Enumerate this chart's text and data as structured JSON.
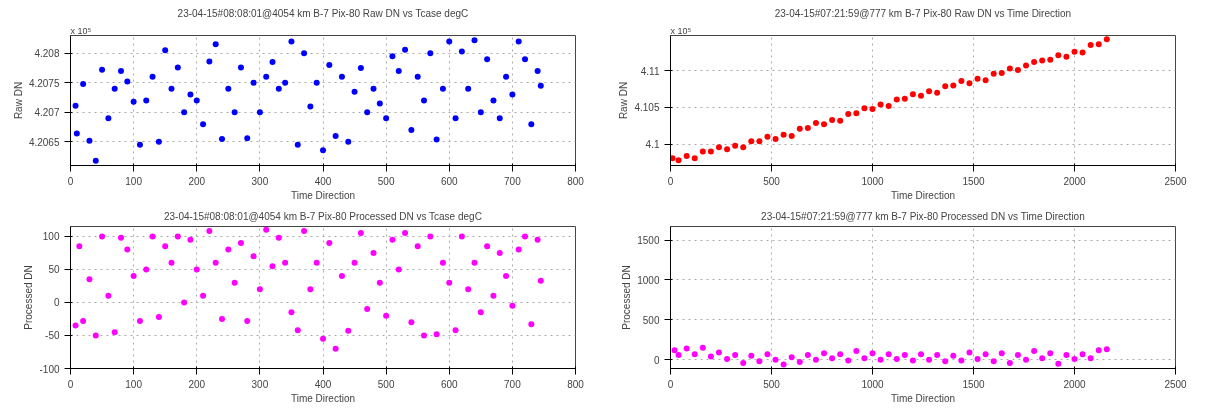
{
  "chart_data": [
    {
      "type": "scatter",
      "title": "23-04-15#08:08:01@4054 km B-7 Pix-80 Raw DN vs Tcase degC",
      "xlabel": "Time Direction",
      "ylabel": "Raw DN",
      "annotations": [
        "x 10⁵"
      ],
      "marker": "circle",
      "grid": true,
      "xlim": [
        0,
        800
      ],
      "xticks": [
        0,
        100,
        200,
        300,
        400,
        500,
        600,
        700,
        800
      ],
      "ylim": [
        4.2061,
        4.2083
      ],
      "yticks": [
        4.2065,
        4.207,
        4.2075,
        4.208
      ],
      "x": [
        8,
        10,
        20,
        30,
        40,
        50,
        60,
        70,
        80,
        90,
        100,
        110,
        120,
        130,
        140,
        150,
        160,
        170,
        180,
        190,
        200,
        210,
        220,
        230,
        240,
        250,
        260,
        270,
        280,
        290,
        300,
        310,
        320,
        330,
        340,
        350,
        360,
        370,
        380,
        390,
        400,
        410,
        420,
        430,
        440,
        450,
        460,
        470,
        480,
        490,
        500,
        510,
        520,
        530,
        540,
        550,
        560,
        570,
        580,
        590,
        600,
        610,
        620,
        630,
        640,
        650,
        660,
        670,
        680,
        690,
        700,
        710,
        720,
        730,
        740,
        745
      ],
      "series": [
        {
          "color": "#0000ff",
          "values": [
            4.20711,
            4.20664,
            4.20748,
            4.20652,
            4.20618,
            4.20772,
            4.2069,
            4.2074,
            4.2077,
            4.20752,
            4.20718,
            4.20645,
            4.2072,
            4.2076,
            4.2065,
            4.20805,
            4.2074,
            4.20776,
            4.207,
            4.2073,
            4.2072,
            4.2068,
            4.20786,
            4.20815,
            4.20655,
            4.2074,
            4.207,
            4.20776,
            4.20656,
            4.2075,
            4.207,
            4.2076,
            4.20785,
            4.2074,
            4.2075,
            4.2082,
            4.20645,
            4.208,
            4.2071,
            4.2075,
            4.20636,
            4.2078,
            4.2066,
            4.2076,
            4.2065,
            4.20735,
            4.20775,
            4.207,
            4.2074,
            4.20715,
            4.2069,
            4.20795,
            4.2077,
            4.20806,
            4.2067,
            4.2076,
            4.2072,
            4.208,
            4.20654,
            4.2074,
            4.2082,
            4.2069,
            4.20803,
            4.2074,
            4.20822,
            4.207,
            4.2079,
            4.2072,
            4.2069,
            4.2076,
            4.2073,
            4.2082,
            4.2079,
            4.2068,
            4.2077,
            4.20745
          ]
        }
      ]
    },
    {
      "type": "scatter",
      "title": "23-04-15#07:21:59@777 km B-7 Pix-80 Raw DN vs Time Direction",
      "xlabel": "Time Direction",
      "ylabel": "Raw DN",
      "annotations": [
        "x 10⁵"
      ],
      "marker": "circle",
      "grid": true,
      "xlim": [
        0,
        2500
      ],
      "xticks": [
        0,
        500,
        1000,
        1500,
        2000,
        2500
      ],
      "ylim": [
        4.0971,
        4.1148
      ],
      "yticks": [
        4.1,
        4.105,
        4.11
      ],
      "x": [
        10,
        40,
        80,
        120,
        160,
        200,
        240,
        280,
        320,
        360,
        400,
        440,
        480,
        520,
        560,
        600,
        640,
        680,
        720,
        760,
        800,
        840,
        880,
        920,
        960,
        1000,
        1040,
        1080,
        1120,
        1160,
        1200,
        1240,
        1280,
        1320,
        1360,
        1400,
        1440,
        1480,
        1520,
        1560,
        1600,
        1640,
        1680,
        1720,
        1760,
        1800,
        1840,
        1880,
        1920,
        1960,
        2000,
        2040,
        2080,
        2120,
        2160
      ],
      "series": [
        {
          "color": "#ff0000",
          "values": [
            4.0981,
            4.0978,
            4.0984,
            4.0981,
            4.099,
            4.099,
            4.0996,
            4.0993,
            4.0998,
            4.0996,
            4.1004,
            4.1004,
            4.101,
            4.1007,
            4.1013,
            4.1011,
            4.1021,
            4.1022,
            4.1029,
            4.1027,
            4.1033,
            4.1032,
            4.1041,
            4.1042,
            4.1049,
            4.1048,
            4.1054,
            4.1052,
            4.1061,
            4.1062,
            4.1068,
            4.1066,
            4.1072,
            4.107,
            4.1079,
            4.108,
            4.1086,
            4.1083,
            4.1089,
            4.1087,
            4.1096,
            4.1097,
            4.1103,
            4.1101,
            4.1107,
            4.1112,
            4.1114,
            4.1115,
            4.1121,
            4.1119,
            4.1126,
            4.1125,
            4.1135,
            4.1136,
            4.1143
          ]
        }
      ]
    },
    {
      "type": "scatter",
      "title": "23-04-15#08:08:01@4054 km B-7 Pix-80 Processed DN vs Tcase degC",
      "xlabel": "Time Direction",
      "ylabel": "Processed DN",
      "marker": "circle",
      "grid": true,
      "xlim": [
        0,
        800
      ],
      "xticks": [
        0,
        100,
        200,
        300,
        400,
        500,
        600,
        700,
        800
      ],
      "ylim": [
        -100,
        115
      ],
      "yticks": [
        -100,
        -50,
        0,
        50,
        100
      ],
      "x": [
        8,
        14,
        20,
        30,
        40,
        50,
        60,
        70,
        80,
        90,
        100,
        110,
        120,
        130,
        140,
        150,
        160,
        170,
        180,
        190,
        200,
        210,
        220,
        230,
        240,
        250,
        260,
        270,
        280,
        290,
        300,
        310,
        320,
        330,
        340,
        350,
        360,
        370,
        380,
        390,
        400,
        410,
        420,
        430,
        440,
        450,
        460,
        470,
        480,
        490,
        500,
        510,
        520,
        530,
        540,
        550,
        560,
        570,
        580,
        590,
        600,
        610,
        620,
        630,
        640,
        650,
        660,
        670,
        680,
        690,
        700,
        710,
        720,
        730,
        740,
        745
      ],
      "series": [
        {
          "color": "#ff00ff",
          "values": [
            -35,
            85,
            -28,
            35,
            -50,
            100,
            10,
            -45,
            98,
            80,
            40,
            -28,
            50,
            100,
            -22,
            85,
            60,
            100,
            0,
            95,
            50,
            10,
            108,
            60,
            -25,
            80,
            30,
            90,
            -28,
            70,
            20,
            110,
            55,
            98,
            60,
            -15,
            -42,
            108,
            20,
            60,
            -55,
            90,
            -70,
            40,
            -43,
            60,
            105,
            -10,
            75,
            30,
            -20,
            95,
            50,
            105,
            -30,
            85,
            -50,
            100,
            -48,
            60,
            30,
            -42,
            100,
            20,
            60,
            -15,
            85,
            10,
            75,
            40,
            -5,
            80,
            100,
            -33,
            95,
            33
          ]
        }
      ]
    },
    {
      "type": "scatter",
      "title": "23-04-15#07:21:59@777 km B-7 Pix-80 Processed DN vs Time Direction",
      "xlabel": "Time Direction",
      "ylabel": "Processed DN",
      "marker": "circle",
      "grid": true,
      "xlim": [
        0,
        2500
      ],
      "xticks": [
        0,
        500,
        1000,
        1500,
        2000,
        2500
      ],
      "ylim": [
        -110,
        1670
      ],
      "yticks": [
        0,
        500,
        1000,
        1500
      ],
      "x": [
        20,
        40,
        80,
        120,
        160,
        200,
        240,
        280,
        320,
        360,
        400,
        440,
        480,
        520,
        560,
        600,
        640,
        680,
        720,
        760,
        800,
        840,
        880,
        920,
        960,
        1000,
        1040,
        1080,
        1120,
        1160,
        1200,
        1240,
        1280,
        1320,
        1360,
        1400,
        1440,
        1480,
        1520,
        1560,
        1600,
        1640,
        1680,
        1720,
        1760,
        1800,
        1840,
        1880,
        1920,
        1960,
        2000,
        2040,
        2080,
        2120,
        2160
      ],
      "series": [
        {
          "color": "#ff00ff",
          "values": [
            120,
            60,
            140,
            70,
            150,
            40,
            90,
            10,
            60,
            -40,
            50,
            -20,
            70,
            0,
            -60,
            30,
            -30,
            60,
            0,
            80,
            20,
            70,
            -10,
            110,
            20,
            80,
            0,
            70,
            10,
            60,
            -10,
            70,
            0,
            60,
            -20,
            50,
            -10,
            90,
            10,
            70,
            -20,
            80,
            -40,
            60,
            0,
            110,
            20,
            80,
            -50,
            60,
            10,
            70,
            20,
            120,
            130
          ]
        }
      ]
    }
  ]
}
